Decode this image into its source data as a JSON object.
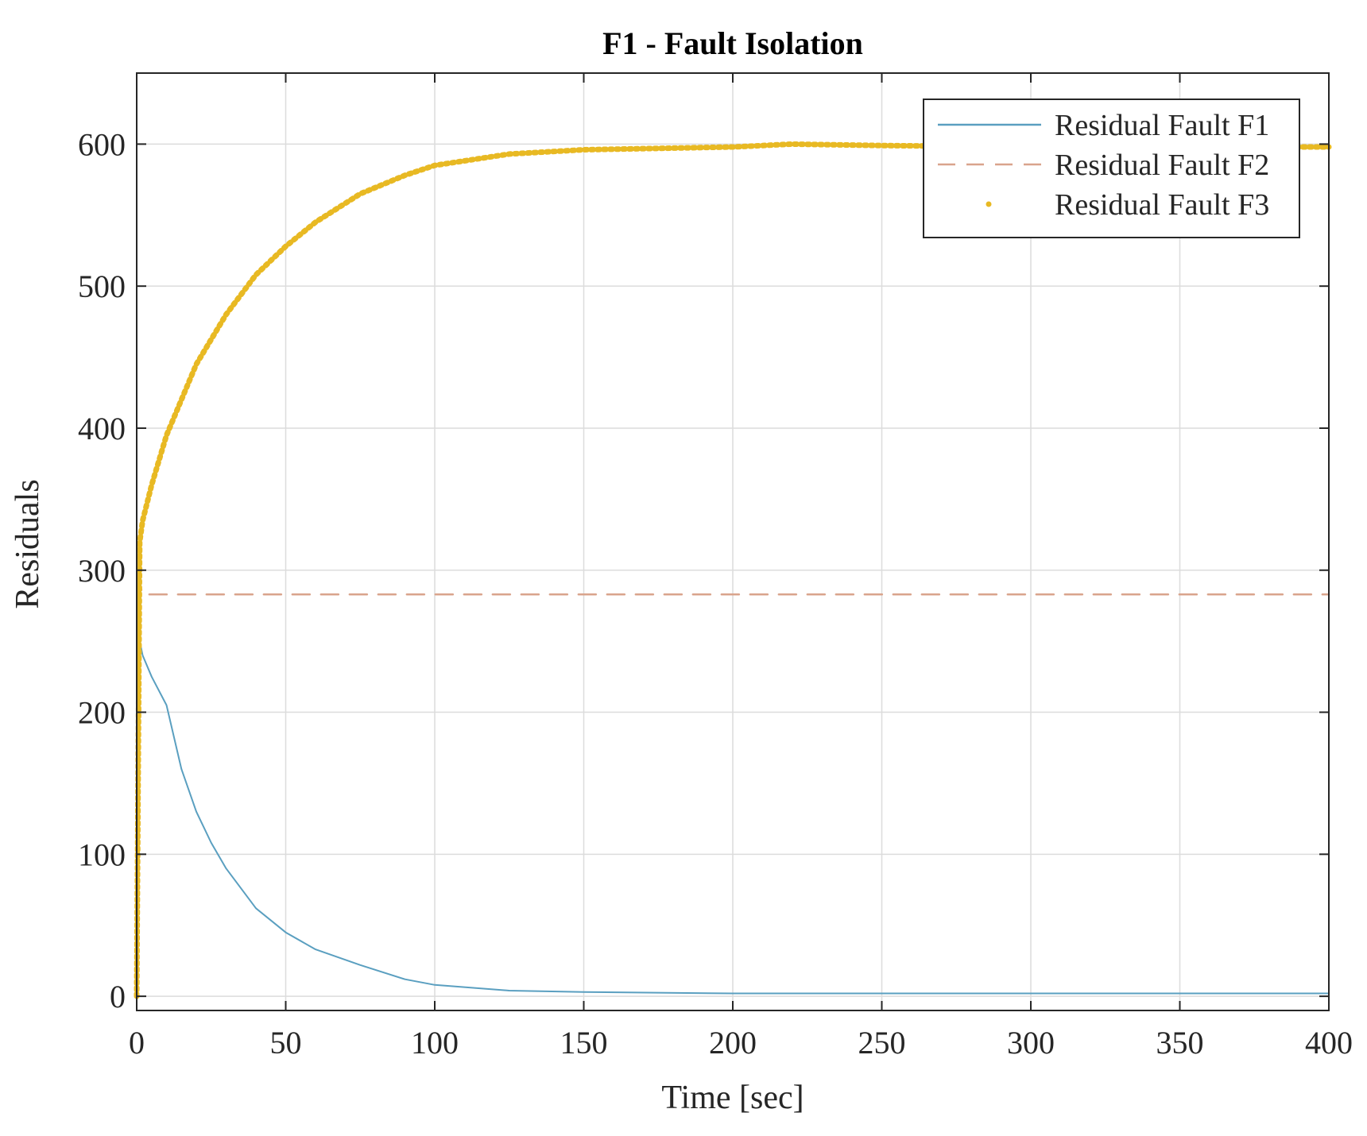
{
  "chart_data": {
    "type": "line",
    "title": "F1 - Fault Isolation",
    "xlabel": "Time [sec]",
    "ylabel": "Residuals",
    "xlim": [
      0,
      400
    ],
    "ylim": [
      -10,
      650
    ],
    "xticks": [
      0,
      50,
      100,
      150,
      200,
      250,
      300,
      350,
      400
    ],
    "yticks": [
      0,
      100,
      200,
      300,
      400,
      500,
      600
    ],
    "xtick_labels": [
      "0",
      "50",
      "100",
      "150",
      "200",
      "250",
      "300",
      "350",
      "400"
    ],
    "ytick_labels": [
      "0",
      "100",
      "200",
      "300",
      "400",
      "500",
      "600"
    ],
    "grid": true,
    "legend_position": "top-right",
    "series": [
      {
        "name": "Residual Fault F1",
        "style": "solid",
        "color": "#5a9fc0",
        "x": [
          0,
          1,
          2,
          5,
          10,
          15,
          20,
          25,
          30,
          40,
          50,
          60,
          75,
          90,
          100,
          125,
          150,
          200,
          250,
          300,
          350,
          400
        ],
        "y": [
          0,
          250,
          240,
          225,
          205,
          160,
          130,
          108,
          90,
          62,
          45,
          33,
          22,
          12,
          8,
          4,
          3,
          2,
          2,
          2,
          2,
          2
        ]
      },
      {
        "name": "Residual Fault F2",
        "style": "dashed",
        "color": "#d9a48c",
        "x": [
          0,
          1,
          2,
          5,
          50,
          100,
          150,
          200,
          250,
          300,
          350,
          400
        ],
        "y": [
          0,
          290,
          283,
          283,
          283,
          283,
          283,
          283,
          283,
          283,
          283,
          283
        ]
      },
      {
        "name": "Residual Fault F3",
        "style": "dotted",
        "color": "#e8b923",
        "x": [
          0,
          1,
          2,
          5,
          10,
          20,
          30,
          40,
          50,
          60,
          75,
          90,
          100,
          125,
          150,
          175,
          200,
          220,
          250,
          300,
          350,
          400
        ],
        "y": [
          0,
          320,
          335,
          360,
          395,
          445,
          480,
          508,
          528,
          545,
          565,
          578,
          585,
          593,
          596,
          597,
          598,
          600,
          599,
          598,
          598,
          598
        ]
      }
    ]
  }
}
